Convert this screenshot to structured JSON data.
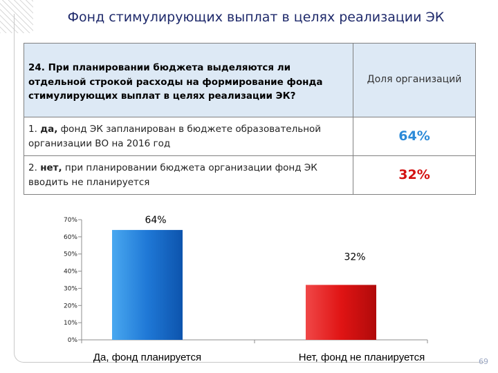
{
  "slide": {
    "title": "Фонд стимулирующих выплат в целях реализации ЭК",
    "page_number": "69"
  },
  "table": {
    "question_number": "24.",
    "question": "При планировании бюджета выделяются ли отдельной строкой расходы на формирование фонда стимулирующих выплат в целях реализации ЭК?",
    "column_header": "Доля организаций",
    "rows": [
      {
        "num": "1.",
        "bold": "да,",
        "rest": "фонд ЭК запланирован в бюджете образовательной организации ВО на 2016 год",
        "value": "64%"
      },
      {
        "num": "2.",
        "bold": "нет,",
        "rest": "при планировании бюджета организации фонд ЭК вводить не планируется",
        "value": "32%"
      }
    ]
  },
  "chart_data": {
    "type": "bar",
    "categories": [
      "Да, фонд планируется",
      "Нет, фонд не планируется"
    ],
    "values": [
      64,
      32
    ],
    "data_labels": [
      "64%",
      "32%"
    ],
    "ylim": [
      0,
      70
    ],
    "yticks": [
      0,
      10,
      20,
      30,
      40,
      50,
      60,
      70
    ],
    "ytick_labels": [
      "0%",
      "10%",
      "20%",
      "30%",
      "40%",
      "50%",
      "60%",
      "70%"
    ],
    "grid": false,
    "colors": [
      "#1f78d6",
      "#e01414"
    ]
  }
}
